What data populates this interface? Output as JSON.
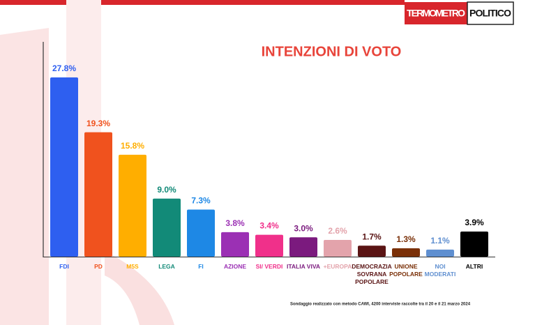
{
  "logo": {
    "left": "TERMOMETRO",
    "right": "POLITICO"
  },
  "chart_data": {
    "type": "bar",
    "title": "INTENZIONI DI VOTO",
    "categories": [
      "FDI",
      "PD",
      "M5S",
      "LEGA",
      "FI",
      "AZIONE",
      "SI/ VERDI",
      "ITALIA VIVA",
      "+EUROPA",
      "DEMOCRAZIA SOVRANA POPOLARE",
      "UNIONE POPOLARE",
      "NOI MODERATI",
      "ALTRI"
    ],
    "values": [
      27.8,
      19.3,
      15.8,
      9.0,
      7.3,
      3.8,
      3.4,
      3.0,
      2.6,
      1.7,
      1.3,
      1.1,
      3.9
    ],
    "value_labels": [
      "27.8%",
      "19.3%",
      "15.8%",
      "9.0%",
      "7.3%",
      "3.8%",
      "3.4%",
      "3.0%",
      "2.6%",
      "1.7%",
      "1.3%",
      "1.1%",
      "3.9%"
    ],
    "colors": [
      "#2e5ff0",
      "#f0521e",
      "#ffae00",
      "#128a78",
      "#1e88e5",
      "#9b30b4",
      "#f0308a",
      "#7b1a7e",
      "#e3a3ab",
      "#5a1414",
      "#7a3008",
      "#5f8fd0",
      "#000000"
    ],
    "note": "Sondaggio realizzato con metodo CAWI, 4200 interviste raccolte tra il 20 e il 21 marzo 2024"
  }
}
